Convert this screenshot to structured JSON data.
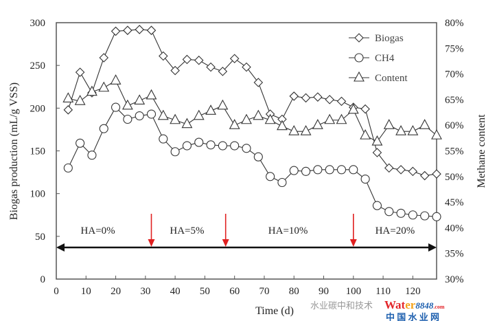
{
  "chart_data": {
    "type": "line",
    "xlabel": "Time (d)",
    "ylabel": "Biogas production (mL/g  VSS)",
    "y2label": "Methane content",
    "xlim": [
      0,
      128
    ],
    "ylim": [
      0,
      300
    ],
    "y2lim": [
      30,
      80
    ],
    "xticks": [
      "0",
      "10",
      "20",
      "30",
      "40",
      "50",
      "60",
      "70",
      "80",
      "90",
      "100",
      "110",
      "120"
    ],
    "yticks": [
      "0",
      "50",
      "100",
      "150",
      "200",
      "250",
      "300"
    ],
    "y2ticks": [
      "30%",
      "35%",
      "40%",
      "45%",
      "50%",
      "55%",
      "60%",
      "65%",
      "70%",
      "75%",
      "80%"
    ],
    "grid": false,
    "legend_position": "top-right",
    "x": [
      4,
      8,
      12,
      16,
      20,
      24,
      28,
      32,
      36,
      40,
      44,
      48,
      52,
      56,
      60,
      64,
      68,
      72,
      76,
      80,
      84,
      88,
      92,
      96,
      100,
      104,
      108,
      112,
      116,
      120,
      124,
      128
    ],
    "series": [
      {
        "name": "Biogas",
        "marker": "diamond",
        "axis": "left",
        "values": [
          198,
          242,
          218,
          259,
          290,
          291,
          292,
          291,
          261,
          244,
          257,
          256,
          248,
          243,
          258,
          248,
          230,
          193,
          187,
          214,
          212,
          213,
          210,
          208,
          201,
          199,
          148,
          130,
          128,
          126,
          121,
          123
        ]
      },
      {
        "name": "CH4",
        "marker": "circle",
        "axis": "left",
        "values": [
          130,
          159,
          145,
          176,
          201,
          187,
          191,
          193,
          164,
          149,
          156,
          160,
          157,
          156,
          156,
          153,
          143,
          120,
          113,
          127,
          126,
          128,
          128,
          128,
          128,
          117,
          86,
          79,
          77,
          75,
          74,
          73
        ]
      },
      {
        "name": "Content",
        "marker": "triangle",
        "axis": "right",
        "values": [
          65.2,
          64.7,
          66.5,
          67.3,
          68.7,
          63.8,
          64.8,
          65.8,
          61.8,
          61.0,
          60.2,
          61.8,
          62.8,
          63.8,
          60.0,
          61.0,
          61.8,
          61.0,
          59.8,
          58.8,
          58.8,
          60.0,
          61.0,
          61.0,
          63.0,
          58.0,
          56.8,
          60.0,
          58.8,
          58.8,
          60.0,
          58.0
        ]
      }
    ],
    "annotations": {
      "phases": [
        {
          "label": "HA=0%",
          "center_day": 14
        },
        {
          "label": "HA=5%",
          "center_day": 44
        },
        {
          "label": "HA=10%",
          "center_day": 78
        },
        {
          "label": "HA=20%",
          "center_day": 114
        }
      ],
      "change_days": [
        32,
        57,
        100
      ],
      "arrow_color": "#e02020",
      "timeline_left_value": 37
    }
  },
  "watermark": {
    "wechat_text": "水业碳中和技术",
    "brand_a": "Wat",
    "brand_b": "er",
    "brand_num": "8848",
    "brand_com": ".com",
    "brand_cn": "中 国 水 业 网"
  }
}
